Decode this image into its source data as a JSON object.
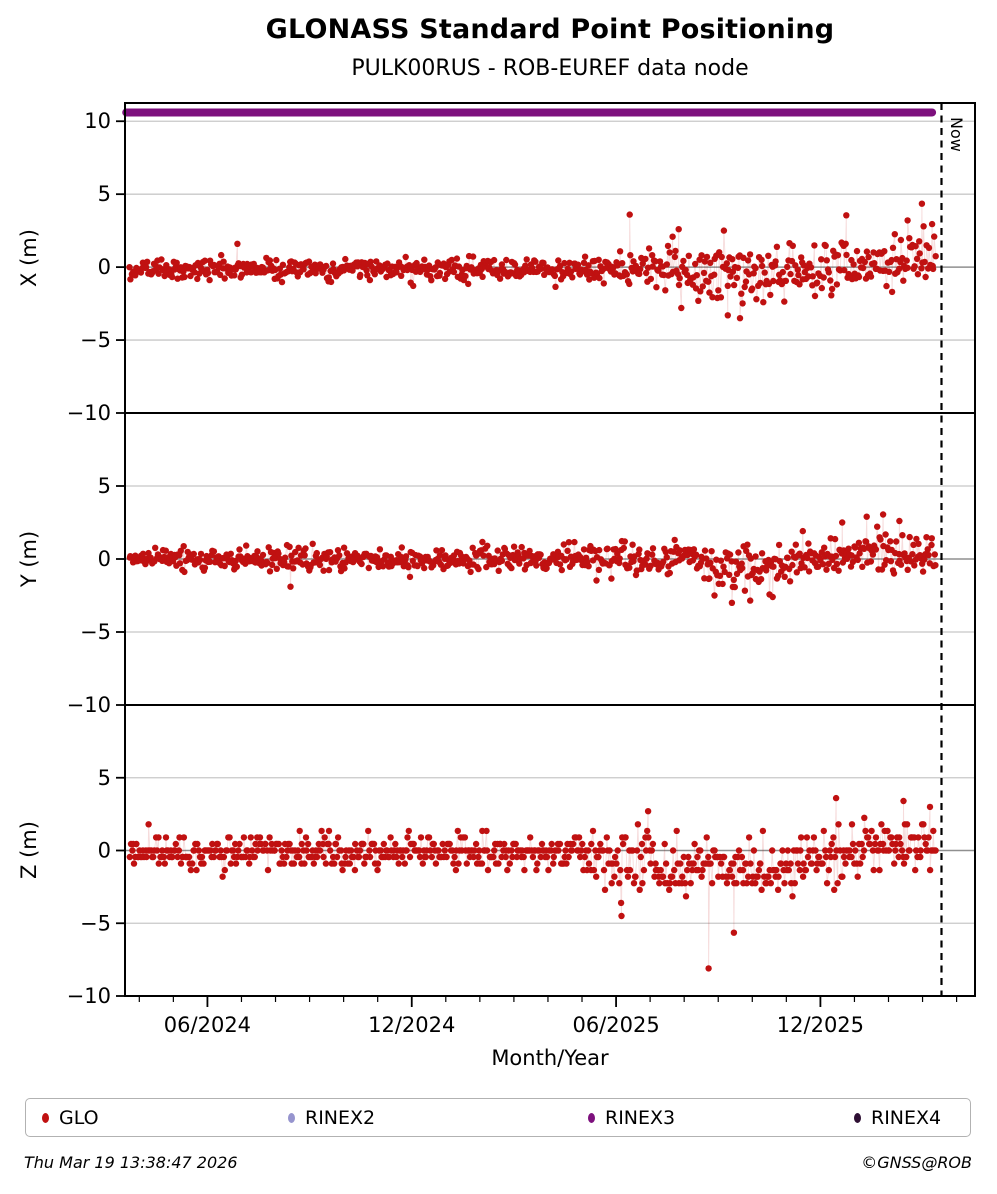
{
  "header": {
    "title": "GLONASS Standard Point Positioning",
    "subtitle": "PULK00RUS - ROB-EUREF data node"
  },
  "chart_data": {
    "type": "scatter",
    "series_name": "GLO",
    "seed": 20260319,
    "x_axis": {
      "label": "Month/Year",
      "start_decimal_year": 2024.215,
      "end_decimal_year": 2026.295,
      "major_ticks": [
        {
          "t": 2024.4167,
          "label": "06/2024"
        },
        {
          "t": 2024.9167,
          "label": "12/2024"
        },
        {
          "t": 2025.4167,
          "label": "06/2025"
        },
        {
          "t": 2025.9167,
          "label": "12/2025"
        }
      ],
      "minor_ticks_monthly": true
    },
    "now": {
      "t": 2026.213,
      "label": "Now"
    },
    "availability_bars": [
      {
        "name": "RINEX3",
        "t0": 2024.218,
        "t1": 2026.19,
        "y": 10.6,
        "color": "#7D107D"
      }
    ],
    "panels": [
      {
        "name": "X",
        "ylabel": "X (m)",
        "ylim": [
          -10,
          11.25
        ],
        "ticks": [
          10,
          5,
          0,
          -5,
          -10
        ],
        "tick_labels": [
          "10",
          "5",
          "0",
          "−5",
          "−10"
        ],
        "segments": [
          {
            "t0": 2024.225,
            "t1": 2025.35,
            "n": 410,
            "mean": -0.15,
            "sd": 0.38,
            "clamp": [
              -1.45,
              1.5
            ]
          },
          {
            "t0": 2025.35,
            "t1": 2025.55,
            "n": 72,
            "mean": -0.1,
            "sd": 0.62,
            "clamp": [
              -2.2,
              2.3
            ]
          },
          {
            "t0": 2025.55,
            "t1": 2025.95,
            "n": 145,
            "mean": -0.45,
            "sd": 0.95,
            "clamp": [
              -2.9,
              2.5
            ]
          },
          {
            "t0": 2025.95,
            "t1": 2026.2,
            "n": 92,
            "mean": 0.15,
            "sd": 0.72,
            "trend": 0.55,
            "clamp": [
              -1.7,
              2.8
            ]
          }
        ],
        "outliers": [
          [
            2024.49,
            1.6
          ],
          [
            2025.45,
            3.6
          ],
          [
            2025.57,
            2.6
          ],
          [
            2025.69,
            -3.3
          ],
          [
            2025.72,
            -3.5
          ],
          [
            2025.98,
            3.55
          ],
          [
            2026.13,
            3.2
          ],
          [
            2026.165,
            4.35
          ],
          [
            2026.19,
            2.95
          ]
        ]
      },
      {
        "name": "Y",
        "ylabel": "Y (m)",
        "ylim": [
          -10,
          10
        ],
        "ticks": [
          5,
          0,
          -5,
          -10
        ],
        "tick_labels": [
          "5",
          "0",
          "−5",
          "−10"
        ],
        "segments": [
          {
            "t0": 2024.225,
            "t1": 2025.3,
            "n": 392,
            "mean": 0.0,
            "sd": 0.38,
            "clamp": [
              -1.5,
              1.5
            ]
          },
          {
            "t0": 2025.3,
            "t1": 2025.6,
            "n": 108,
            "mean": -0.1,
            "sd": 0.55,
            "clamp": [
              -2.1,
              1.9
            ]
          },
          {
            "t0": 2025.6,
            "t1": 2025.85,
            "n": 90,
            "mean": -0.5,
            "sd": 0.78,
            "clamp": [
              -2.7,
              1.7
            ]
          },
          {
            "t0": 2025.85,
            "t1": 2026.2,
            "n": 128,
            "mean": 0.3,
            "sd": 0.62,
            "clamp": [
              -1.8,
              2.4
            ]
          }
        ],
        "outliers": [
          [
            2024.62,
            -1.9
          ],
          [
            2025.7,
            -3.0
          ],
          [
            2025.745,
            -2.85
          ],
          [
            2025.8,
            -2.6
          ],
          [
            2025.97,
            2.5
          ],
          [
            2026.03,
            2.9
          ],
          [
            2026.07,
            3.05
          ],
          [
            2026.11,
            2.6
          ]
        ]
      },
      {
        "name": "Z",
        "ylabel": "Z (m)",
        "ylim": [
          -10,
          10
        ],
        "ticks": [
          5,
          0,
          -5,
          -10
        ],
        "tick_labels": [
          "5",
          "0",
          "−5",
          "−10"
        ],
        "quantize": 0.45,
        "segments": [
          {
            "t0": 2024.225,
            "t1": 2025.35,
            "n": 405,
            "mean": -0.1,
            "sd": 0.58,
            "clamp": [
              -2.3,
              1.6
            ]
          },
          {
            "t0": 2025.35,
            "t1": 2025.5,
            "n": 54,
            "mean": -0.6,
            "sd": 1.1,
            "clamp": [
              -4.75,
              2.0
            ]
          },
          {
            "t0": 2025.5,
            "t1": 2025.85,
            "n": 126,
            "mean": -1.3,
            "sd": 1.0,
            "clamp": [
              -4.6,
              1.2
            ]
          },
          {
            "t0": 2025.85,
            "t1": 2026.2,
            "n": 127,
            "mean": -0.45,
            "sd": 0.8,
            "trend": 0.85,
            "clamp": [
              -2.75,
              2.1
            ]
          }
        ],
        "outliers": [
          [
            2025.43,
            -4.5
          ],
          [
            2025.495,
            2.7
          ],
          [
            2025.643,
            -8.1
          ],
          [
            2025.705,
            -5.65
          ],
          [
            2025.955,
            3.6
          ],
          [
            2026.12,
            3.4
          ],
          [
            2026.185,
            3.0
          ]
        ]
      }
    ],
    "style": {
      "point_color": "#C01111",
      "connector_color": "rgba(192,17,17,0.15)",
      "grid_color": "#C8C8C8",
      "zero_line_color": "#8F8F8F",
      "frame_color": "#000000",
      "now_line_color": "#000000"
    }
  },
  "legend": {
    "items": [
      {
        "label": "GLO",
        "color": "#C01111"
      },
      {
        "label": "RINEX2",
        "color": "#9694CE"
      },
      {
        "label": "RINEX3",
        "color": "#7D107D"
      },
      {
        "label": "RINEX4",
        "color": "#2E0F33"
      }
    ]
  },
  "footer": {
    "timestamp": "Thu Mar 19 13:38:47 2026",
    "credit": "©GNSS@ROB"
  }
}
